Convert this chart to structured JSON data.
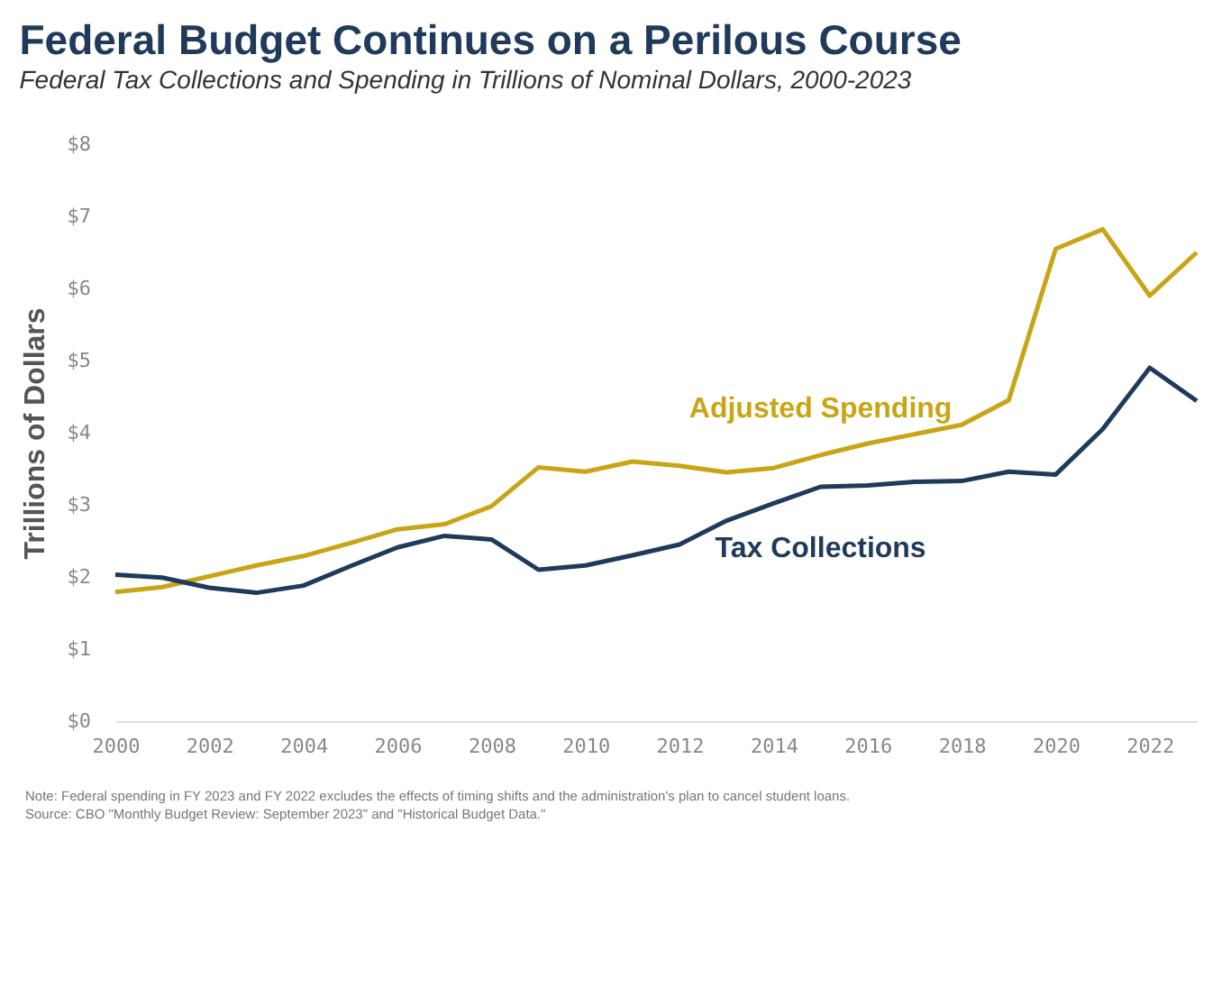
{
  "chart_data": {
    "type": "line",
    "title": "Federal Budget Continues on a Perilous Course",
    "subtitle": "Federal Tax Collections and Spending in Trillions of Nominal Dollars, 2000-2023",
    "ylabel": "Trillions of Dollars",
    "x": [
      2000,
      2001,
      2002,
      2003,
      2004,
      2005,
      2006,
      2007,
      2008,
      2009,
      2010,
      2011,
      2012,
      2013,
      2014,
      2015,
      2016,
      2017,
      2018,
      2019,
      2020,
      2021,
      2022,
      2023
    ],
    "series": [
      {
        "name": "Adjusted Spending",
        "color": "#c9a516",
        "values": [
          1.79,
          1.86,
          2.01,
          2.16,
          2.29,
          2.47,
          2.66,
          2.73,
          2.98,
          3.52,
          3.46,
          3.6,
          3.54,
          3.45,
          3.51,
          3.69,
          3.85,
          3.98,
          4.11,
          4.45,
          6.55,
          6.82,
          5.9,
          6.5
        ]
      },
      {
        "name": "Tax Collections",
        "color": "#1f3a5a",
        "values": [
          2.03,
          1.99,
          1.85,
          1.78,
          1.88,
          2.15,
          2.41,
          2.57,
          2.52,
          2.1,
          2.16,
          2.3,
          2.45,
          2.78,
          3.02,
          3.25,
          3.27,
          3.32,
          3.33,
          3.46,
          3.42,
          4.05,
          4.9,
          4.44
        ]
      }
    ],
    "xlim": [
      2000,
      2023
    ],
    "xticks": [
      2000,
      2002,
      2004,
      2006,
      2008,
      2010,
      2012,
      2014,
      2016,
      2018,
      2020,
      2022
    ],
    "ylim": [
      0,
      8
    ],
    "yticks": [
      {
        "value": 0,
        "label": "$0"
      },
      {
        "value": 1,
        "label": "$1"
      },
      {
        "value": 2,
        "label": "$2"
      },
      {
        "value": 3,
        "label": "$3"
      },
      {
        "value": 4,
        "label": "$4"
      },
      {
        "value": 5,
        "label": "$5"
      },
      {
        "value": 6,
        "label": "$6"
      },
      {
        "value": 7,
        "label": "$7"
      },
      {
        "value": 8,
        "label": "$8"
      }
    ],
    "grid": false,
    "legend": false,
    "marker": "none",
    "line_style": "solid",
    "annotations": [
      "Note: Federal spending in FY 2023 and FY 2022 excludes the effects of timing shifts and the administration's plan to cancel student loans.",
      "Source: CBO \"Monthly Budget Review: September 2023\" and \"Historical Budget Data.\""
    ]
  }
}
